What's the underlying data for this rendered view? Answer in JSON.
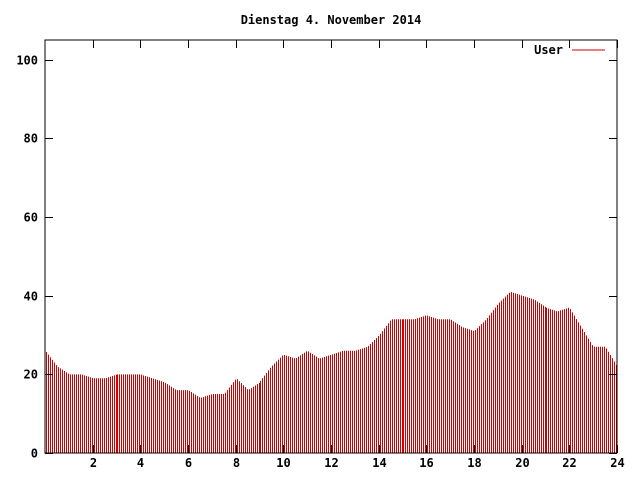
{
  "chart_data": {
    "type": "bar",
    "title": "Dienstag 4. November 2014",
    "xlabel": "",
    "ylabel": "",
    "xlim": [
      0,
      24
    ],
    "ylim": [
      0,
      105
    ],
    "x_ticks": [
      2,
      4,
      6,
      8,
      10,
      12,
      14,
      16,
      18,
      20,
      22,
      24
    ],
    "y_ticks": [
      0,
      20,
      40,
      60,
      80,
      100
    ],
    "grid": false,
    "legend_position": "top-right",
    "colors": {
      "series": "#cc0000",
      "axis": "#000000",
      "background": "#ffffff"
    },
    "series": [
      {
        "name": "User",
        "x": [
          0.0,
          0.5,
          1.0,
          1.5,
          2.0,
          2.5,
          3.0,
          3.5,
          4.0,
          4.5,
          5.0,
          5.5,
          6.0,
          6.5,
          7.0,
          7.5,
          8.0,
          8.5,
          9.0,
          9.5,
          10.0,
          10.5,
          11.0,
          11.5,
          12.0,
          12.5,
          13.0,
          13.5,
          14.0,
          14.5,
          15.0,
          15.5,
          16.0,
          16.5,
          17.0,
          17.5,
          18.0,
          18.5,
          19.0,
          19.5,
          20.0,
          20.5,
          21.0,
          21.5,
          22.0,
          22.5,
          23.0,
          23.5,
          24.0
        ],
        "values": [
          26,
          22,
          20,
          20,
          19,
          19,
          20,
          20,
          20,
          19,
          18,
          16,
          16,
          14,
          15,
          15,
          19,
          16,
          18,
          22,
          25,
          24,
          26,
          24,
          25,
          26,
          26,
          27,
          30,
          34,
          34,
          34,
          35,
          34,
          34,
          32,
          31,
          34,
          38,
          41,
          40,
          39,
          37,
          36,
          37,
          32,
          27,
          27,
          22
        ]
      }
    ]
  }
}
